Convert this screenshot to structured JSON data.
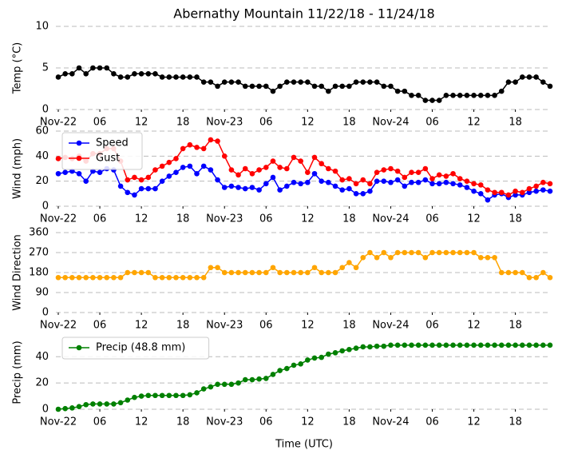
{
  "chart_data": [
    {
      "type": "line",
      "title": "Abernathy Mountain 11/22/18 - 11/24/18",
      "ylabel": "Temp (°C)",
      "x": [
        0,
        1,
        2,
        3,
        4,
        5,
        6,
        7,
        8,
        9,
        10,
        11,
        12,
        13,
        14,
        15,
        16,
        17,
        18,
        19,
        20,
        21,
        22,
        23,
        24,
        25,
        26,
        27,
        28,
        29,
        30,
        31,
        32,
        33,
        34,
        35,
        36,
        37,
        38,
        39,
        40,
        41,
        42,
        43,
        44,
        45,
        46,
        47,
        48,
        49,
        50,
        51,
        52,
        53,
        54,
        55,
        56,
        57,
        58,
        59,
        60,
        61,
        62,
        63,
        64,
        65,
        66,
        67,
        68,
        69,
        70,
        71
      ],
      "xlim": [
        0,
        71
      ],
      "xticks": [
        {
          "value": 0,
          "label": "Nov-22"
        },
        {
          "value": 6,
          "label": "06"
        },
        {
          "value": 12,
          "label": "12"
        },
        {
          "value": 18,
          "label": "18"
        },
        {
          "value": 24,
          "label": "Nov-23"
        },
        {
          "value": 30,
          "label": "06"
        },
        {
          "value": 36,
          "label": "12"
        },
        {
          "value": 42,
          "label": "18"
        },
        {
          "value": 48,
          "label": "Nov-24"
        },
        {
          "value": 54,
          "label": "06"
        },
        {
          "value": 60,
          "label": "12"
        },
        {
          "value": 66,
          "label": "18"
        }
      ],
      "ylim": [
        0,
        10
      ],
      "yticks": [
        0,
        5,
        10
      ],
      "grid": true,
      "color": "#000000",
      "values": [
        3.9,
        4.3,
        4.3,
        5,
        4.3,
        5,
        5,
        5,
        4.3,
        3.9,
        3.9,
        4.3,
        4.3,
        4.3,
        4.3,
        3.9,
        3.9,
        3.9,
        3.9,
        3.9,
        3.9,
        3.3,
        3.3,
        2.8,
        3.3,
        3.3,
        3.3,
        2.8,
        2.8,
        2.8,
        2.8,
        2.2,
        2.8,
        3.3,
        3.3,
        3.3,
        3.3,
        2.8,
        2.8,
        2.2,
        2.8,
        2.8,
        2.8,
        3.3,
        3.3,
        3.3,
        3.3,
        2.8,
        2.8,
        2.2,
        2.2,
        1.7,
        1.7,
        1.1,
        1.1,
        1.1,
        1.7,
        1.7,
        1.7,
        1.7,
        1.7,
        1.7,
        1.7,
        1.7,
        2.2,
        3.3,
        3.3,
        3.9,
        3.9,
        3.9,
        3.3,
        2.8
      ]
    },
    {
      "type": "line",
      "ylabel": "Wind (mph)",
      "legend": "upper left",
      "x": [
        0,
        1,
        2,
        3,
        4,
        5,
        6,
        7,
        8,
        9,
        10,
        11,
        12,
        13,
        14,
        15,
        16,
        17,
        18,
        19,
        20,
        21,
        22,
        23,
        24,
        25,
        26,
        27,
        28,
        29,
        30,
        31,
        32,
        33,
        34,
        35,
        36,
        37,
        38,
        39,
        40,
        41,
        42,
        43,
        44,
        45,
        46,
        47,
        48,
        49,
        50,
        51,
        52,
        53,
        54,
        55,
        56,
        57,
        58,
        59,
        60,
        61,
        62,
        63,
        64,
        65,
        66,
        67,
        68,
        69,
        70,
        71
      ],
      "xlim": [
        0,
        71
      ],
      "xticks": [
        {
          "value": 0,
          "label": "Nov-22"
        },
        {
          "value": 6,
          "label": "06"
        },
        {
          "value": 12,
          "label": "12"
        },
        {
          "value": 18,
          "label": "18"
        },
        {
          "value": 24,
          "label": "Nov-23"
        },
        {
          "value": 30,
          "label": "06"
        },
        {
          "value": 36,
          "label": "12"
        },
        {
          "value": 42,
          "label": "18"
        },
        {
          "value": 48,
          "label": "Nov-24"
        },
        {
          "value": 54,
          "label": "06"
        },
        {
          "value": 60,
          "label": "12"
        },
        {
          "value": 66,
          "label": "18"
        }
      ],
      "ylim": [
        0,
        60
      ],
      "yticks": [
        0,
        20,
        40,
        60
      ],
      "grid": true,
      "series": [
        {
          "name": "Speed",
          "color": "#0000ff",
          "values": [
            26,
            27,
            28,
            26,
            20,
            28,
            27,
            30,
            29,
            16,
            11,
            9,
            14,
            14,
            14,
            20,
            24,
            27,
            31,
            32,
            26,
            32,
            29,
            21,
            15,
            16,
            15,
            14,
            15,
            13,
            18,
            23,
            13,
            16,
            19,
            18,
            19,
            26,
            20,
            19,
            16,
            13,
            14,
            10,
            10,
            12,
            20,
            20,
            19,
            21,
            16,
            19,
            19,
            21,
            18,
            18,
            19,
            18,
            17,
            15,
            12,
            10,
            5,
            9,
            10,
            7,
            9,
            9,
            11,
            12,
            13,
            12
          ]
        },
        {
          "name": "Gust",
          "color": "#ff0000",
          "values": [
            38,
            39,
            38,
            40,
            36,
            42,
            42,
            46,
            46,
            36,
            21,
            23,
            21,
            23,
            29,
            32,
            35,
            38,
            46,
            49,
            47,
            46,
            53,
            52,
            40,
            29,
            25,
            30,
            26,
            29,
            31,
            36,
            31,
            30,
            39,
            36,
            27,
            39,
            34,
            30,
            28,
            21,
            22,
            18,
            21,
            18,
            27,
            29,
            30,
            28,
            23,
            27,
            27,
            30,
            22,
            25,
            24,
            26,
            22,
            20,
            18,
            17,
            13,
            11,
            11,
            9,
            12,
            11,
            14,
            16,
            19,
            18
          ]
        }
      ]
    },
    {
      "type": "line",
      "ylabel": "Wind Direction",
      "x": [
        0,
        1,
        2,
        3,
        4,
        5,
        6,
        7,
        8,
        9,
        10,
        11,
        12,
        13,
        14,
        15,
        16,
        17,
        18,
        19,
        20,
        21,
        22,
        23,
        24,
        25,
        26,
        27,
        28,
        29,
        30,
        31,
        32,
        33,
        34,
        35,
        36,
        37,
        38,
        39,
        40,
        41,
        42,
        43,
        44,
        45,
        46,
        47,
        48,
        49,
        50,
        51,
        52,
        53,
        54,
        55,
        56,
        57,
        58,
        59,
        60,
        61,
        62,
        63,
        64,
        65,
        66,
        67,
        68,
        69,
        70,
        71
      ],
      "xlim": [
        0,
        71
      ],
      "xticks": [
        {
          "value": 0,
          "label": "Nov-22"
        },
        {
          "value": 6,
          "label": "06"
        },
        {
          "value": 12,
          "label": "12"
        },
        {
          "value": 18,
          "label": "18"
        },
        {
          "value": 24,
          "label": "Nov-23"
        },
        {
          "value": 30,
          "label": "06"
        },
        {
          "value": 36,
          "label": "12"
        },
        {
          "value": 42,
          "label": "18"
        },
        {
          "value": 48,
          "label": "Nov-24"
        },
        {
          "value": 54,
          "label": "06"
        },
        {
          "value": 60,
          "label": "12"
        },
        {
          "value": 66,
          "label": "18"
        }
      ],
      "ylim": [
        0,
        360
      ],
      "yticks": [
        0,
        90,
        180,
        270,
        360
      ],
      "grid": true,
      "color": "#ffa500",
      "values": [
        157.5,
        157.5,
        157.5,
        157.5,
        157.5,
        157.5,
        157.5,
        157.5,
        157.5,
        157.5,
        180,
        180,
        180,
        180,
        157.5,
        157.5,
        157.5,
        157.5,
        157.5,
        157.5,
        157.5,
        157.5,
        202.5,
        202.5,
        180,
        180,
        180,
        180,
        180,
        180,
        180,
        202.5,
        180,
        180,
        180,
        180,
        180,
        202.5,
        180,
        180,
        180,
        202.5,
        225,
        202.5,
        247.5,
        270,
        247.5,
        270,
        247.5,
        270,
        270,
        270,
        270,
        247.5,
        270,
        270,
        270,
        270,
        270,
        270,
        270,
        247.5,
        247.5,
        247.5,
        180,
        180,
        180,
        180,
        157.5,
        157.5,
        180,
        157.5
      ]
    },
    {
      "type": "line",
      "ylabel": "Precip (mm)",
      "xlabel": "Time (UTC)",
      "legend": "upper left",
      "x": [
        0,
        1,
        2,
        3,
        4,
        5,
        6,
        7,
        8,
        9,
        10,
        11,
        12,
        13,
        14,
        15,
        16,
        17,
        18,
        19,
        20,
        21,
        22,
        23,
        24,
        25,
        26,
        27,
        28,
        29,
        30,
        31,
        32,
        33,
        34,
        35,
        36,
        37,
        38,
        39,
        40,
        41,
        42,
        43,
        44,
        45,
        46,
        47,
        48,
        49,
        50,
        51,
        52,
        53,
        54,
        55,
        56,
        57,
        58,
        59,
        60,
        61,
        62,
        63,
        64,
        65,
        66,
        67,
        68,
        69,
        70,
        71
      ],
      "xlim": [
        0,
        71
      ],
      "xticks": [
        {
          "value": 0,
          "label": "Nov-22"
        },
        {
          "value": 6,
          "label": "06"
        },
        {
          "value": 12,
          "label": "12"
        },
        {
          "value": 18,
          "label": "18"
        },
        {
          "value": 24,
          "label": "Nov-23"
        },
        {
          "value": 30,
          "label": "06"
        },
        {
          "value": 36,
          "label": "12"
        },
        {
          "value": 42,
          "label": "18"
        },
        {
          "value": 48,
          "label": "Nov-24"
        },
        {
          "value": 54,
          "label": "06"
        },
        {
          "value": 60,
          "label": "12"
        },
        {
          "value": 66,
          "label": "18"
        }
      ],
      "ylim": [
        0,
        56
      ],
      "yticks": [
        0,
        20,
        40
      ],
      "grid": true,
      "series": [
        {
          "name": "Precip (48.8 mm)",
          "color": "#008000",
          "values": [
            0,
            0.5,
            1,
            2,
            3.5,
            4,
            4,
            4,
            4,
            5,
            7,
            9,
            10,
            10.5,
            10.5,
            10.5,
            10.5,
            10.5,
            10.5,
            11,
            12.5,
            15.5,
            17,
            19,
            19,
            19,
            20,
            22.5,
            22.5,
            23,
            23.5,
            26.5,
            29.5,
            31,
            33.5,
            34.5,
            37.5,
            39,
            39.5,
            42,
            43,
            44.5,
            45.5,
            46.5,
            47.5,
            47.5,
            48,
            48,
            48.8,
            48.8,
            48.8,
            48.8,
            48.8,
            48.8,
            48.8,
            48.8,
            48.8,
            48.8,
            48.8,
            48.8,
            48.8,
            48.8,
            48.8,
            48.8,
            48.8,
            48.8,
            48.8,
            48.8,
            48.8,
            48.8,
            48.8,
            48.8
          ]
        }
      ]
    }
  ]
}
